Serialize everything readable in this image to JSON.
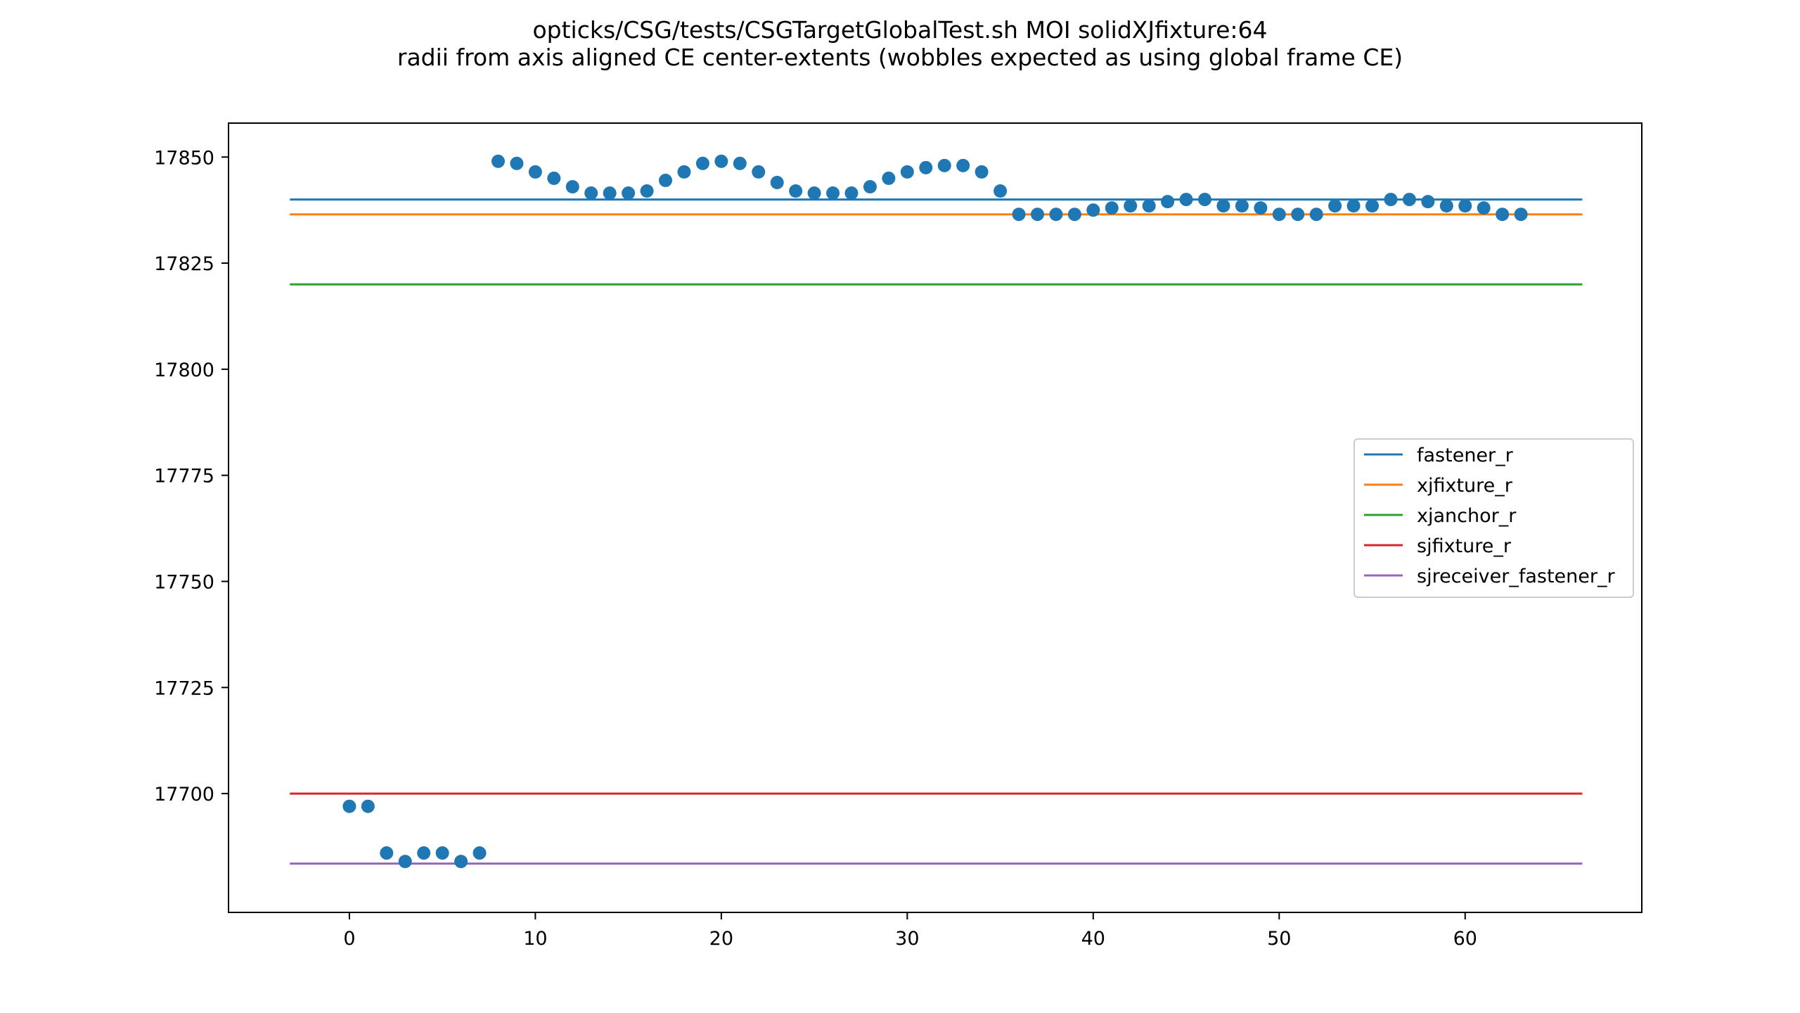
{
  "chart_data": {
    "type": "scatter",
    "title": "opticks/CSG/tests/CSGTargetGlobalTest.sh MOI solidXJfixture:64",
    "subtitle": "radii from axis aligned CE center-extents (wobbles expected as using global frame CE)",
    "xlabel": "",
    "ylabel": "",
    "xlim": [
      -6.5,
      69.5
    ],
    "ylim": [
      17672,
      17858
    ],
    "xticks": [
      0,
      10,
      20,
      30,
      40,
      50,
      60
    ],
    "yticks": [
      17700,
      17725,
      17750,
      17775,
      17800,
      17825,
      17850
    ],
    "grid": false,
    "legend_position": "center-right",
    "points": {
      "color": "#1f77b4",
      "x": [
        0,
        1,
        2,
        3,
        4,
        5,
        6,
        7,
        8,
        9,
        10,
        11,
        12,
        13,
        14,
        15,
        16,
        17,
        18,
        19,
        20,
        21,
        22,
        23,
        24,
        25,
        26,
        27,
        28,
        29,
        30,
        31,
        32,
        33,
        34,
        35,
        36,
        37,
        38,
        39,
        40,
        41,
        42,
        43,
        44,
        45,
        46,
        47,
        48,
        49,
        50,
        51,
        52,
        53,
        54,
        55,
        56,
        57,
        58,
        59,
        60,
        61,
        62,
        63
      ],
      "y": [
        17697,
        17697,
        17686,
        17684,
        17686,
        17686,
        17684,
        17686,
        17849,
        17848.5,
        17846.5,
        17845,
        17843,
        17841.5,
        17841.5,
        17841.5,
        17842,
        17844.5,
        17846.5,
        17848.5,
        17849,
        17848.5,
        17846.5,
        17844,
        17842,
        17841.5,
        17841.5,
        17841.5,
        17843,
        17845,
        17846.5,
        17847.5,
        17848,
        17848,
        17846.5,
        17842,
        17836.5,
        17836.5,
        17836.5,
        17836.5,
        17837.5,
        17838,
        17838.5,
        17838.5,
        17839.5,
        17840,
        17840,
        17838.5,
        17838.5,
        17838,
        17836.5,
        17836.5,
        17836.5,
        17838.5,
        17838.5,
        17838.5,
        17840,
        17840,
        17839.5,
        17838.5,
        17838.5,
        17838,
        17836.5,
        17836.5
      ]
    },
    "series": [
      {
        "name": "fastener_r",
        "type": "hline",
        "y": 17840,
        "x_range": [
          -3.2,
          66.3
        ],
        "color": "#1f77b4"
      },
      {
        "name": "xjfixture_r",
        "type": "hline",
        "y": 17836.5,
        "x_range": [
          -3.2,
          66.3
        ],
        "color": "#ff7f0e"
      },
      {
        "name": "xjanchor_r",
        "type": "hline",
        "y": 17820,
        "x_range": [
          -3.2,
          66.3
        ],
        "color": "#2ca02c"
      },
      {
        "name": "sjfixture_r",
        "type": "hline",
        "y": 17700,
        "x_range": [
          -3.2,
          66.3
        ],
        "color": "#d62728"
      },
      {
        "name": "sjreceiver_fastener_r",
        "type": "hline",
        "y": 17683.5,
        "x_range": [
          -3.2,
          66.3
        ],
        "color": "#9467bd"
      }
    ]
  }
}
